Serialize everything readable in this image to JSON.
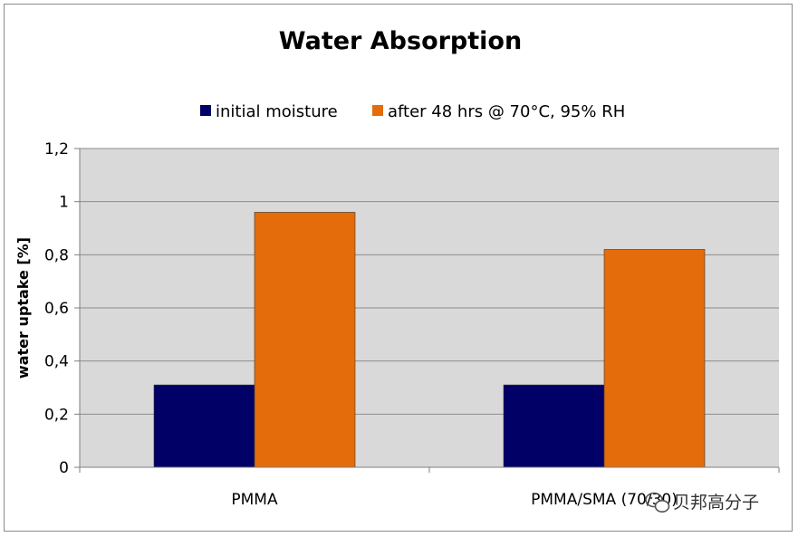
{
  "chart_data": {
    "type": "bar",
    "title": "Water Absorption",
    "xlabel": "",
    "ylabel": "water uptake [%]",
    "categories": [
      "PMMA",
      "PMMA/SMA (70/30)"
    ],
    "series": [
      {
        "name": "initial moisture",
        "values": [
          0.31,
          0.31
        ],
        "color": "#000066"
      },
      {
        "name": "after 48 hrs @ 70°C, 95% RH",
        "values": [
          0.96,
          0.82
        ],
        "color": "#E46C0A"
      }
    ],
    "ylim": [
      0,
      1.2
    ],
    "yticks": [
      {
        "value": 0,
        "label": "0"
      },
      {
        "value": 0.2,
        "label": "0,2"
      },
      {
        "value": 0.4,
        "label": "0,4"
      },
      {
        "value": 0.6,
        "label": "0,6"
      },
      {
        "value": 0.8,
        "label": "0,8"
      },
      {
        "value": 1.0,
        "label": "1"
      },
      {
        "value": 1.2,
        "label": "1,2"
      }
    ],
    "grid": true,
    "legend_position": "top",
    "plot_background": "#D9D9D9"
  },
  "watermark": {
    "text": "贝邦高分子"
  }
}
